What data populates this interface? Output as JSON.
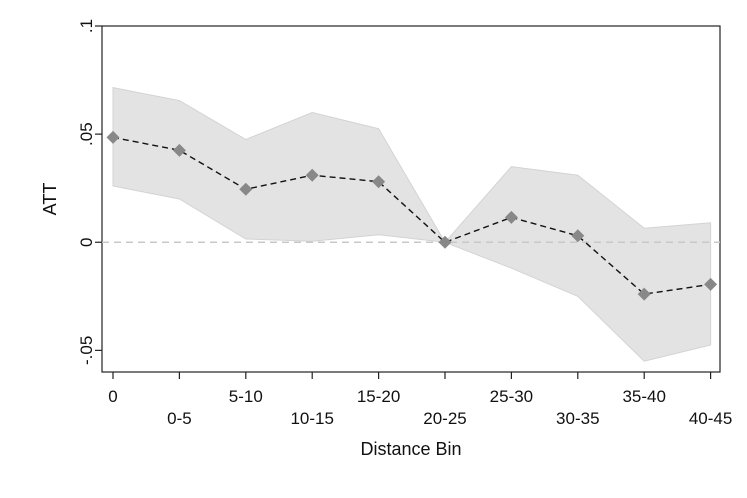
{
  "chart_data": {
    "type": "line",
    "title": "",
    "xlabel": "Distance Bin",
    "ylabel": "ATT",
    "categories": [
      "0",
      "0-5",
      "5-10",
      "10-15",
      "15-20",
      "20-25",
      "25-30",
      "30-35",
      "35-40",
      "40-45"
    ],
    "series": [
      {
        "values": [
          0.0485,
          0.0425,
          0.0245,
          0.031,
          0.028,
          0.0,
          0.0115,
          0.003,
          -0.024,
          -0.0195
        ],
        "ci_lower": [
          0.026,
          0.02,
          0.0015,
          0.0005,
          0.0035,
          0.0,
          -0.012,
          -0.025,
          -0.055,
          -0.0475
        ],
        "ci_upper": [
          0.0715,
          0.0655,
          0.0475,
          0.06,
          0.0525,
          0.0,
          0.035,
          0.031,
          0.0065,
          0.009
        ],
        "marker": "diamond",
        "line_style": "dashed",
        "color": "#888888"
      }
    ],
    "band_color": "#e3e3e3",
    "reference_line": {
      "y": 0,
      "color": "#c8c8c8",
      "style": "dashed"
    },
    "ylim": [
      -0.06,
      0.1
    ],
    "yticks": [
      -0.05,
      0,
      0.05,
      0.1
    ],
    "ytick_labels": [
      "-.05",
      "0",
      ".05",
      ".1"
    ],
    "grid": false,
    "legend": "none"
  }
}
